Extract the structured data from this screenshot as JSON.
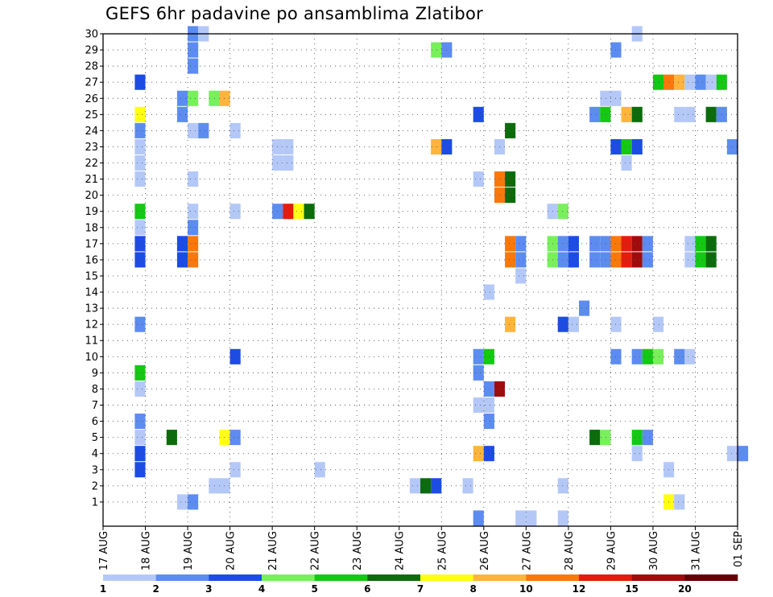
{
  "chart_data": {
    "type": "heatmap",
    "title": "GEFS 6hr padavine po ansamblima Zlatibor",
    "xlabel": "",
    "ylabel": "",
    "x_ticks": [
      "17 AUG",
      "18 AUG",
      "19 AUG",
      "20 AUG",
      "21 AUG",
      "22 AUG",
      "23 AUG",
      "24 AUG",
      "25 AUG",
      "26 AUG",
      "27 AUG",
      "28 AUG",
      "29 AUG",
      "30 AUG",
      "31 AUG",
      "01 SEP"
    ],
    "y_ticks": [
      "1",
      "2",
      "3",
      "4",
      "5",
      "6",
      "7",
      "8",
      "9",
      "10",
      "11",
      "12",
      "13",
      "14",
      "15",
      "16",
      "17",
      "18",
      "19",
      "20",
      "21",
      "22",
      "23",
      "24",
      "25",
      "26",
      "27",
      "28",
      "29",
      "30"
    ],
    "ylim": [
      0,
      30
    ],
    "grid": true,
    "legend": {
      "position": "bottom",
      "boundaries": [
        "1",
        "2",
        "3",
        "4",
        "5",
        "6",
        "7",
        "8",
        "10",
        "12",
        "15",
        "20"
      ],
      "colors": [
        "#b4c8f8",
        "#5c8cf0",
        "#1c4ce4",
        "#78f05c",
        "#14c814",
        "#0c6c0c",
        "#ffff14",
        "#ffb43c",
        "#f8780c",
        "#e41c0c",
        "#a00c0c",
        "#640000"
      ]
    },
    "series": [
      {
        "member": 30,
        "points": [
          {
            "t": "19 AUG 00Z",
            "v": 2.5
          },
          {
            "t": "19 AUG 06Z",
            "v": 1.5
          },
          {
            "t": "29 AUG 12Z",
            "v": 1.5
          }
        ]
      },
      {
        "member": 29,
        "points": [
          {
            "t": "19 AUG 00Z",
            "v": 2.5
          },
          {
            "t": "24 AUG 18Z",
            "v": 4.5
          },
          {
            "t": "25 AUG 00Z",
            "v": 2.5
          },
          {
            "t": "29 AUG 00Z",
            "v": 2.5
          }
        ]
      },
      {
        "member": 28,
        "points": [
          {
            "t": "19 AUG 00Z",
            "v": 2.5
          }
        ]
      },
      {
        "member": 27,
        "points": [
          {
            "t": "17 AUG 18Z",
            "v": 3.5
          },
          {
            "t": "30 AUG 00Z",
            "v": 5.5
          },
          {
            "t": "30 AUG 06Z",
            "v": 11
          },
          {
            "t": "30 AUG 12Z",
            "v": 9
          },
          {
            "t": "30 AUG 18Z",
            "v": 1.5
          },
          {
            "t": "31 AUG 00Z",
            "v": 2.5
          },
          {
            "t": "31 AUG 06Z",
            "v": 1.5
          },
          {
            "t": "31 AUG 12Z",
            "v": 5.5
          }
        ]
      },
      {
        "member": 26,
        "points": [
          {
            "t": "18 AUG 18Z",
            "v": 2.5
          },
          {
            "t": "19 AUG 00Z",
            "v": 4.5
          },
          {
            "t": "19 AUG 12Z",
            "v": 4.5
          },
          {
            "t": "19 AUG 18Z",
            "v": 9
          },
          {
            "t": "28 AUG 18Z",
            "v": 1.5
          },
          {
            "t": "29 AUG 00Z",
            "v": 1.5
          }
        ]
      },
      {
        "member": 25,
        "points": [
          {
            "t": "17 AUG 18Z",
            "v": 7.5
          },
          {
            "t": "18 AUG 18Z",
            "v": 2.5
          },
          {
            "t": "25 AUG 18Z",
            "v": 3.5
          },
          {
            "t": "28 AUG 12Z",
            "v": 2.5
          },
          {
            "t": "28 AUG 18Z",
            "v": 5.5
          },
          {
            "t": "29 AUG 06Z",
            "v": 9
          },
          {
            "t": "29 AUG 12Z",
            "v": 6.5
          },
          {
            "t": "30 AUG 12Z",
            "v": 1.5
          },
          {
            "t": "30 AUG 18Z",
            "v": 1.5
          },
          {
            "t": "31 AUG 06Z",
            "v": 6.5
          },
          {
            "t": "31 AUG 12Z",
            "v": 2.5
          }
        ]
      },
      {
        "member": 24,
        "points": [
          {
            "t": "17 AUG 18Z",
            "v": 2.5
          },
          {
            "t": "19 AUG 00Z",
            "v": 1.5
          },
          {
            "t": "19 AUG 06Z",
            "v": 2.5
          },
          {
            "t": "20 AUG 00Z",
            "v": 1.5
          },
          {
            "t": "26 AUG 12Z",
            "v": 6.5
          }
        ]
      },
      {
        "member": 23,
        "points": [
          {
            "t": "17 AUG 18Z",
            "v": 1.5
          },
          {
            "t": "21 AUG 00Z",
            "v": 1.5
          },
          {
            "t": "21 AUG 06Z",
            "v": 1.5
          },
          {
            "t": "24 AUG 18Z",
            "v": 9
          },
          {
            "t": "25 AUG 00Z",
            "v": 3.5
          },
          {
            "t": "26 AUG 06Z",
            "v": 1.5
          },
          {
            "t": "29 AUG 00Z",
            "v": 3.5
          },
          {
            "t": "29 AUG 06Z",
            "v": 5.5
          },
          {
            "t": "29 AUG 12Z",
            "v": 3.5
          },
          {
            "t": "31 AUG 18Z",
            "v": 2.5
          }
        ]
      },
      {
        "member": 22,
        "points": [
          {
            "t": "17 AUG 18Z",
            "v": 1.5
          },
          {
            "t": "21 AUG 00Z",
            "v": 1.5
          },
          {
            "t": "21 AUG 06Z",
            "v": 1.5
          },
          {
            "t": "29 AUG 06Z",
            "v": 1.5
          }
        ]
      },
      {
        "member": 21,
        "points": [
          {
            "t": "17 AUG 18Z",
            "v": 1.5
          },
          {
            "t": "19 AUG 00Z",
            "v": 1.5
          },
          {
            "t": "25 AUG 18Z",
            "v": 1.5
          },
          {
            "t": "26 AUG 06Z",
            "v": 11
          },
          {
            "t": "26 AUG 12Z",
            "v": 6.5
          }
        ]
      },
      {
        "member": 20,
        "points": [
          {
            "t": "26 AUG 06Z",
            "v": 11
          },
          {
            "t": "26 AUG 12Z",
            "v": 6.5
          }
        ]
      },
      {
        "member": 19,
        "points": [
          {
            "t": "17 AUG 18Z",
            "v": 5.5
          },
          {
            "t": "19 AUG 00Z",
            "v": 1.5
          },
          {
            "t": "20 AUG 00Z",
            "v": 1.5
          },
          {
            "t": "21 AUG 00Z",
            "v": 2.5
          },
          {
            "t": "21 AUG 06Z",
            "v": 13
          },
          {
            "t": "21 AUG 12Z",
            "v": 7.5
          },
          {
            "t": "21 AUG 18Z",
            "v": 6.5
          },
          {
            "t": "27 AUG 12Z",
            "v": 1.5
          },
          {
            "t": "27 AUG 18Z",
            "v": 4.5
          }
        ]
      },
      {
        "member": 18,
        "points": [
          {
            "t": "17 AUG 18Z",
            "v": 1.5
          },
          {
            "t": "19 AUG 00Z",
            "v": 2.5
          }
        ]
      },
      {
        "member": 17,
        "points": [
          {
            "t": "17 AUG 18Z",
            "v": 3.5
          },
          {
            "t": "18 AUG 18Z",
            "v": 3.5
          },
          {
            "t": "19 AUG 00Z",
            "v": 11
          },
          {
            "t": "26 AUG 12Z",
            "v": 11
          },
          {
            "t": "26 AUG 18Z",
            "v": 2.5
          },
          {
            "t": "27 AUG 12Z",
            "v": 4.5
          },
          {
            "t": "27 AUG 18Z",
            "v": 2.5
          },
          {
            "t": "28 AUG 00Z",
            "v": 3.5
          },
          {
            "t": "28 AUG 12Z",
            "v": 2.5
          },
          {
            "t": "28 AUG 18Z",
            "v": 2.5
          },
          {
            "t": "29 AUG 00Z",
            "v": 11
          },
          {
            "t": "29 AUG 06Z",
            "v": 13
          },
          {
            "t": "29 AUG 12Z",
            "v": 17
          },
          {
            "t": "29 AUG 18Z",
            "v": 2.5
          },
          {
            "t": "30 AUG 18Z",
            "v": 1.5
          },
          {
            "t": "31 AUG 00Z",
            "v": 5.5
          },
          {
            "t": "31 AUG 06Z",
            "v": 6.5
          }
        ]
      },
      {
        "member": 16,
        "points": [
          {
            "t": "17 AUG 18Z",
            "v": 3.5
          },
          {
            "t": "18 AUG 18Z",
            "v": 3.5
          },
          {
            "t": "19 AUG 00Z",
            "v": 11
          },
          {
            "t": "26 AUG 12Z",
            "v": 11
          },
          {
            "t": "26 AUG 18Z",
            "v": 2.5
          },
          {
            "t": "27 AUG 12Z",
            "v": 4.5
          },
          {
            "t": "27 AUG 18Z",
            "v": 2.5
          },
          {
            "t": "28 AUG 00Z",
            "v": 3.5
          },
          {
            "t": "28 AUG 12Z",
            "v": 2.5
          },
          {
            "t": "28 AUG 18Z",
            "v": 2.5
          },
          {
            "t": "29 AUG 00Z",
            "v": 11
          },
          {
            "t": "29 AUG 06Z",
            "v": 13
          },
          {
            "t": "29 AUG 12Z",
            "v": 17
          },
          {
            "t": "29 AUG 18Z",
            "v": 2.5
          },
          {
            "t": "30 AUG 18Z",
            "v": 1.5
          },
          {
            "t": "31 AUG 00Z",
            "v": 5.5
          },
          {
            "t": "31 AUG 06Z",
            "v": 6.5
          }
        ]
      },
      {
        "member": 15,
        "points": [
          {
            "t": "26 AUG 18Z",
            "v": 1.5
          }
        ]
      },
      {
        "member": 14,
        "points": [
          {
            "t": "26 AUG 00Z",
            "v": 1.5
          }
        ]
      },
      {
        "member": 13,
        "points": [
          {
            "t": "28 AUG 06Z",
            "v": 2.5
          }
        ]
      },
      {
        "member": 12,
        "points": [
          {
            "t": "17 AUG 18Z",
            "v": 2.5
          },
          {
            "t": "26 AUG 12Z",
            "v": 9
          },
          {
            "t": "27 AUG 18Z",
            "v": 3.5
          },
          {
            "t": "28 AUG 00Z",
            "v": 1.5
          },
          {
            "t": "29 AUG 00Z",
            "v": 1.5
          },
          {
            "t": "30 AUG 00Z",
            "v": 1.5
          }
        ]
      },
      {
        "member": 11,
        "points": []
      },
      {
        "member": 10,
        "points": [
          {
            "t": "20 AUG 00Z",
            "v": 3.5
          },
          {
            "t": "25 AUG 18Z",
            "v": 2.5
          },
          {
            "t": "26 AUG 00Z",
            "v": 5.5
          },
          {
            "t": "29 AUG 00Z",
            "v": 2.5
          },
          {
            "t": "29 AUG 12Z",
            "v": 2.5
          },
          {
            "t": "29 AUG 18Z",
            "v": 5.5
          },
          {
            "t": "30 AUG 00Z",
            "v": 4.5
          },
          {
            "t": "30 AUG 12Z",
            "v": 2.5
          },
          {
            "t": "30 AUG 18Z",
            "v": 1.5
          }
        ]
      },
      {
        "member": 9,
        "points": [
          {
            "t": "17 AUG 18Z",
            "v": 5.5
          },
          {
            "t": "25 AUG 18Z",
            "v": 2.5
          }
        ]
      },
      {
        "member": 8,
        "points": [
          {
            "t": "17 AUG 18Z",
            "v": 1.5
          },
          {
            "t": "26 AUG 00Z",
            "v": 2.5
          },
          {
            "t": "26 AUG 06Z",
            "v": 17
          }
        ]
      },
      {
        "member": 7,
        "points": [
          {
            "t": "25 AUG 18Z",
            "v": 1.5
          },
          {
            "t": "26 AUG 00Z",
            "v": 1.5
          }
        ]
      },
      {
        "member": 6,
        "points": [
          {
            "t": "17 AUG 18Z",
            "v": 2.5
          },
          {
            "t": "26 AUG 00Z",
            "v": 2.5
          }
        ]
      },
      {
        "member": 5,
        "points": [
          {
            "t": "17 AUG 18Z",
            "v": 1.5
          },
          {
            "t": "18 AUG 12Z",
            "v": 6.5
          },
          {
            "t": "19 AUG 18Z",
            "v": 7.5
          },
          {
            "t": "20 AUG 00Z",
            "v": 2.5
          },
          {
            "t": "28 AUG 12Z",
            "v": 6.5
          },
          {
            "t": "28 AUG 18Z",
            "v": 4.5
          },
          {
            "t": "29 AUG 12Z",
            "v": 5.5
          },
          {
            "t": "29 AUG 18Z",
            "v": 2.5
          }
        ]
      },
      {
        "member": 4,
        "points": [
          {
            "t": "17 AUG 18Z",
            "v": 3.5
          },
          {
            "t": "25 AUG 18Z",
            "v": 9
          },
          {
            "t": "26 AUG 00Z",
            "v": 3.5
          },
          {
            "t": "29 AUG 12Z",
            "v": 1.5
          },
          {
            "t": "31 AUG 18Z",
            "v": 1.5
          },
          {
            "t": "01 SEP 00Z",
            "v": 2.5
          }
        ]
      },
      {
        "member": 3,
        "points": [
          {
            "t": "17 AUG 18Z",
            "v": 3.5
          },
          {
            "t": "20 AUG 00Z",
            "v": 1.5
          },
          {
            "t": "22 AUG 00Z",
            "v": 1.5
          },
          {
            "t": "30 AUG 06Z",
            "v": 1.5
          }
        ]
      },
      {
        "member": 2,
        "points": [
          {
            "t": "19 AUG 12Z",
            "v": 1.5
          },
          {
            "t": "19 AUG 18Z",
            "v": 1.5
          },
          {
            "t": "24 AUG 06Z",
            "v": 1.5
          },
          {
            "t": "24 AUG 12Z",
            "v": 6.5
          },
          {
            "t": "24 AUG 18Z",
            "v": 3.5
          },
          {
            "t": "25 AUG 12Z",
            "v": 1.5
          },
          {
            "t": "27 AUG 18Z",
            "v": 1.5
          }
        ]
      },
      {
        "member": 1,
        "points": [
          {
            "t": "18 AUG 18Z",
            "v": 1.5
          },
          {
            "t": "19 AUG 00Z",
            "v": 2.5
          },
          {
            "t": "30 AUG 06Z",
            "v": 7.5
          },
          {
            "t": "30 AUG 12Z",
            "v": 1.5
          }
        ]
      },
      {
        "member": 0,
        "points": [
          {
            "t": "25 AUG 18Z",
            "v": 2.5
          },
          {
            "t": "26 AUG 18Z",
            "v": 1.5
          },
          {
            "t": "27 AUG 00Z",
            "v": 1.5
          },
          {
            "t": "27 AUG 18Z",
            "v": 1.5
          }
        ]
      }
    ]
  }
}
